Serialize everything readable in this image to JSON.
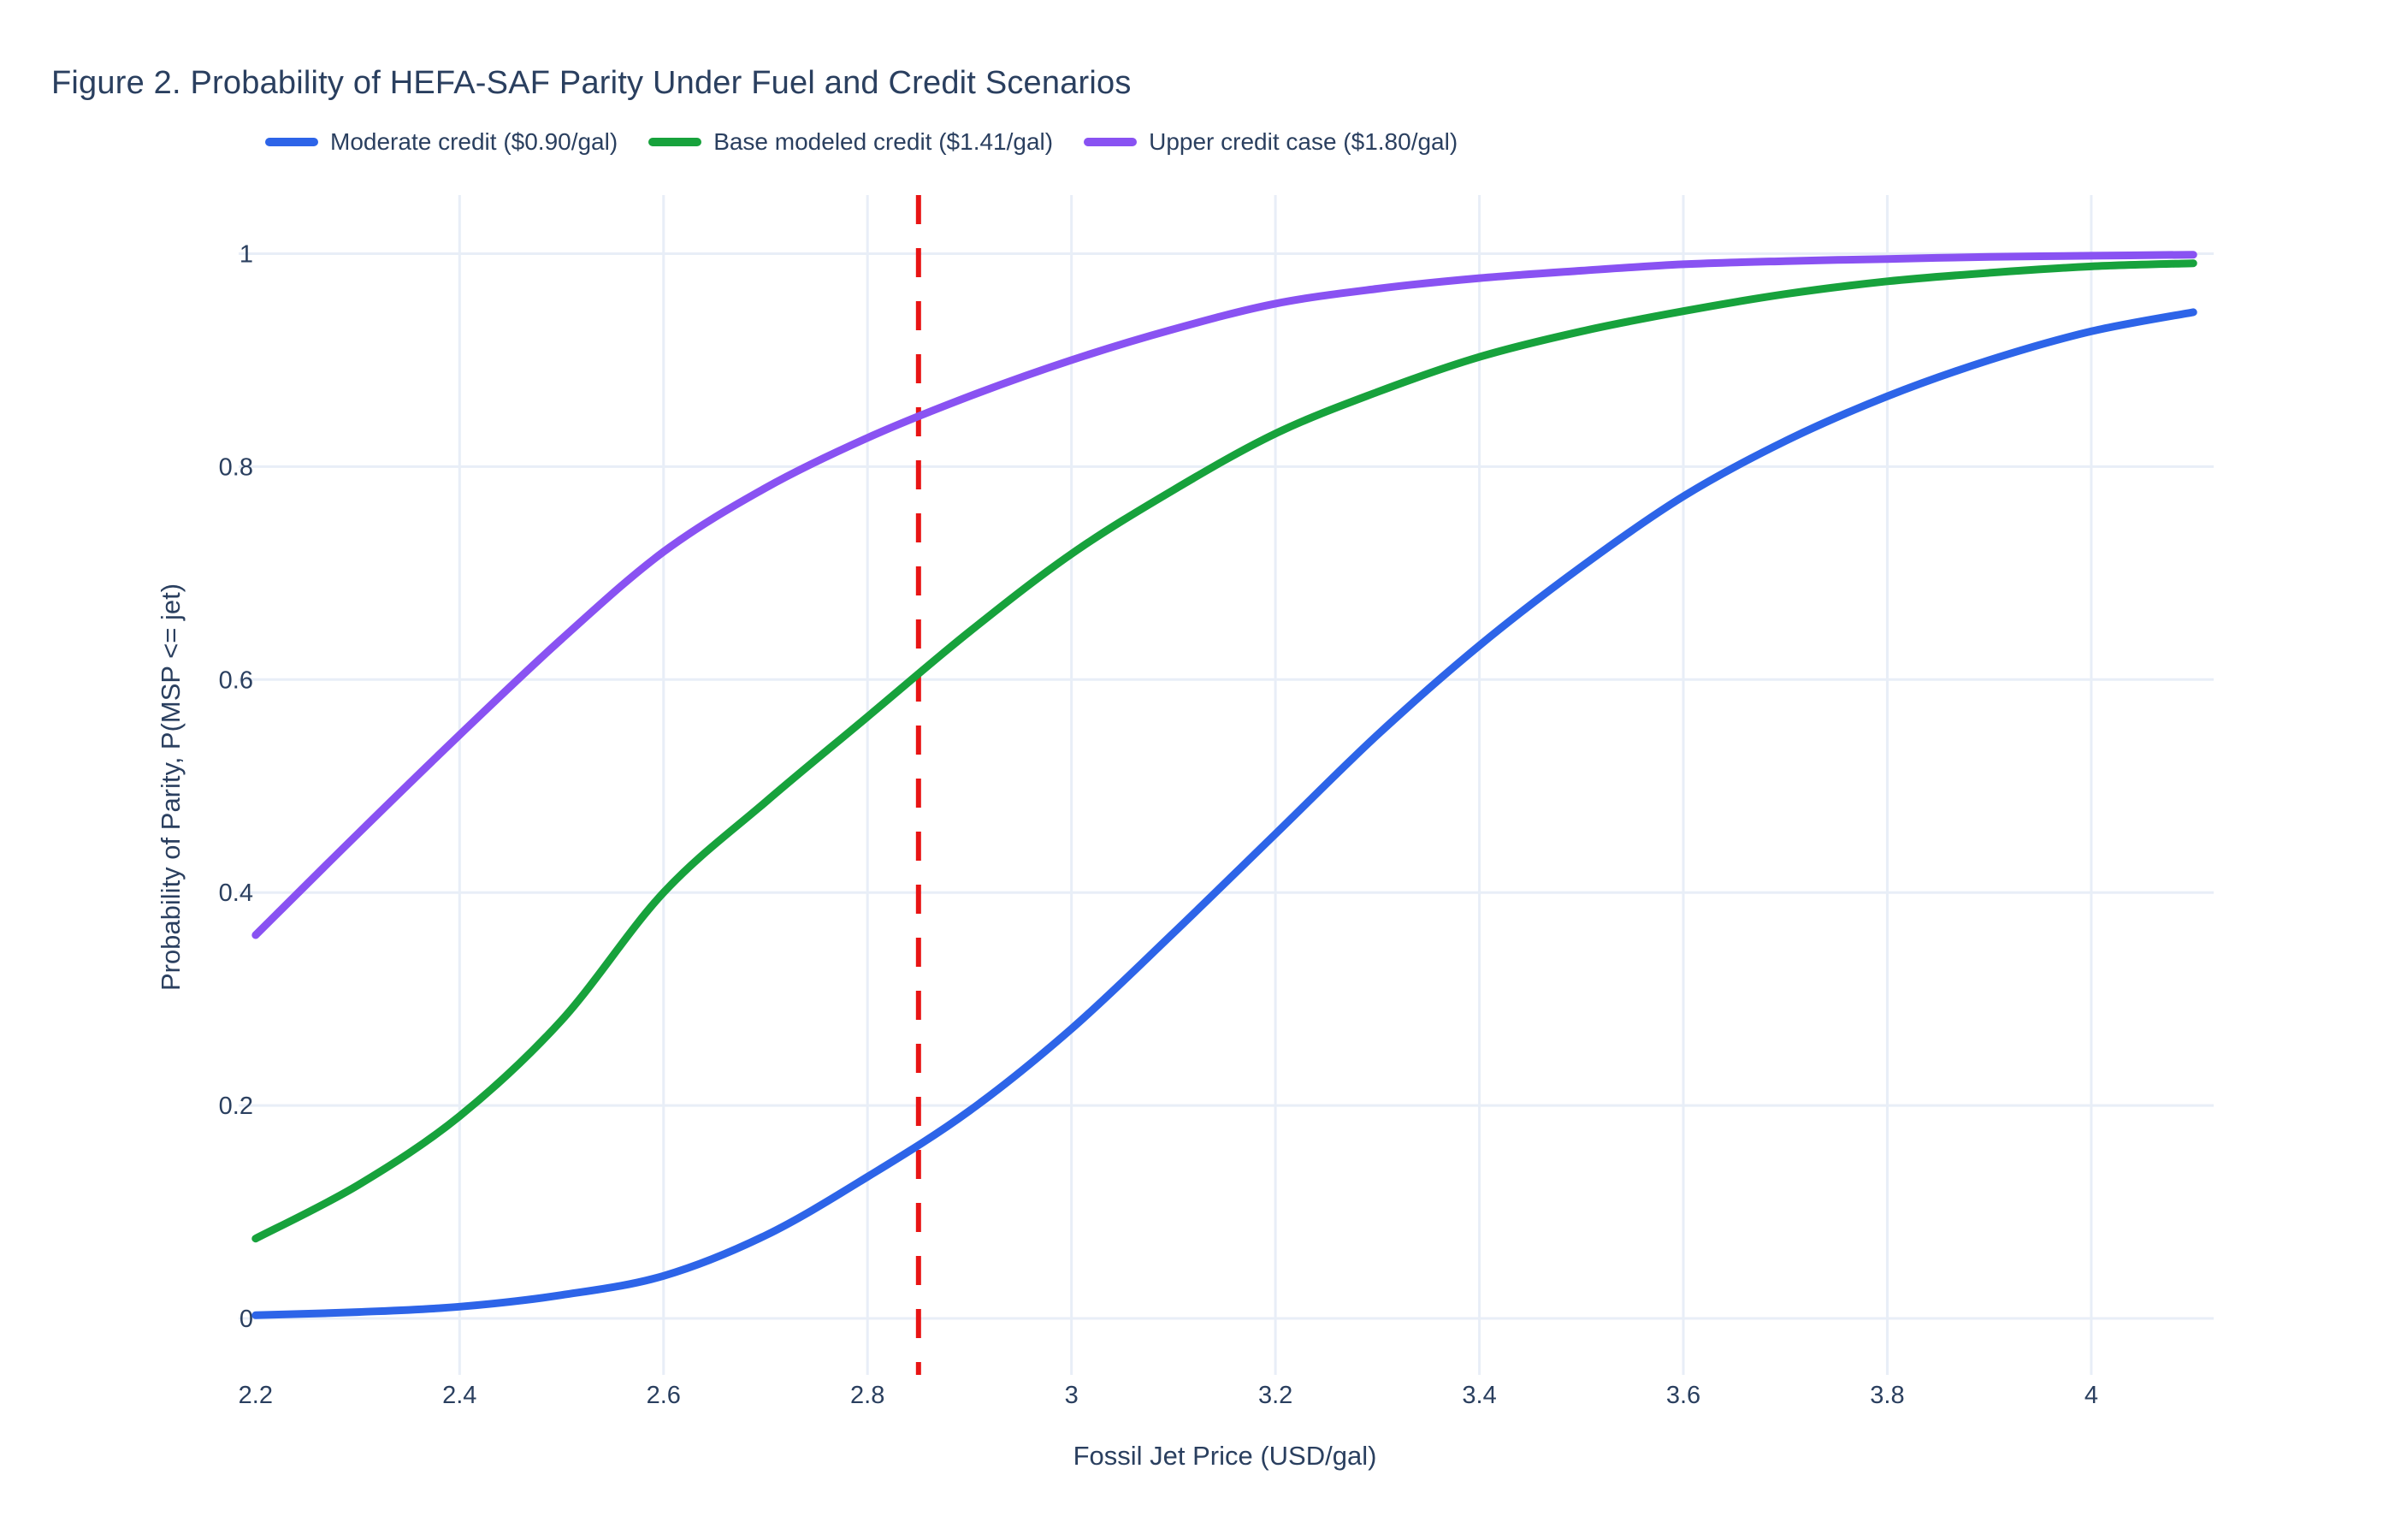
{
  "title": "Figure 2. Probability of HEFA-SAF Parity Under Fuel and Credit Scenarios",
  "colors": {
    "text": "#2a3f5f",
    "grid": "#e8eef7",
    "background": "#ffffff",
    "threshold_line": "#e81414"
  },
  "axes": {
    "x_title": "Fossil Jet Price (USD/gal)",
    "y_title": "Probability of Parity, P(MSP <= jet)"
  },
  "chart_data": {
    "type": "line",
    "title": "Figure 2. Probability of HEFA-SAF Parity Under Fuel and Credit Scenarios",
    "xlabel": "Fossil Jet Price (USD/gal)",
    "ylabel": "Probability of Parity, P(MSP <= jet)",
    "xlim": [
      2.18,
      4.12
    ],
    "ylim": [
      -0.053,
      1.055
    ],
    "grid": true,
    "legend_position": "top",
    "x": [
      2.2,
      2.3,
      2.4,
      2.5,
      2.6,
      2.7,
      2.8,
      2.9,
      3.0,
      3.1,
      3.2,
      3.3,
      3.4,
      3.5,
      3.6,
      3.7,
      3.8,
      3.9,
      4.0,
      4.1
    ],
    "xticks": {
      "values": [
        2.2,
        2.4,
        2.6,
        2.8,
        3.0,
        3.2,
        3.4,
        3.6,
        3.8,
        4.0
      ],
      "labels": [
        "2.2",
        "2.4",
        "2.6",
        "2.8",
        "3",
        "3.2",
        "3.4",
        "3.6",
        "3.8",
        "4"
      ]
    },
    "yticks": {
      "values": [
        0,
        0.2,
        0.4,
        0.6,
        0.8,
        1.0
      ],
      "labels": [
        "0",
        "0.2",
        "0.4",
        "0.6",
        "0.8",
        "1"
      ]
    },
    "vline": {
      "x": 2.85,
      "color": "#e81414",
      "style": "dashed"
    },
    "series": [
      {
        "name": "Moderate credit ($0.90/gal)",
        "color": "#2d64e8",
        "values": [
          0.003,
          0.006,
          0.011,
          0.022,
          0.04,
          0.078,
          0.133,
          0.195,
          0.272,
          0.362,
          0.455,
          0.548,
          0.632,
          0.706,
          0.772,
          0.824,
          0.866,
          0.9,
          0.927,
          0.945
        ]
      },
      {
        "name": "Base modeled credit ($1.41/gal)",
        "color": "#17a23c",
        "values": [
          0.075,
          0.125,
          0.19,
          0.28,
          0.4,
          0.485,
          0.565,
          0.645,
          0.718,
          0.778,
          0.831,
          0.87,
          0.903,
          0.927,
          0.946,
          0.962,
          0.974,
          0.982,
          0.988,
          0.991
        ]
      },
      {
        "name": "Upper credit case ($1.80/gal)",
        "color": "#8952f2",
        "values": [
          0.36,
          0.455,
          0.548,
          0.638,
          0.72,
          0.78,
          0.827,
          0.866,
          0.9,
          0.929,
          0.953,
          0.967,
          0.977,
          0.984,
          0.99,
          0.993,
          0.995,
          0.997,
          0.998,
          0.999
        ]
      }
    ]
  }
}
